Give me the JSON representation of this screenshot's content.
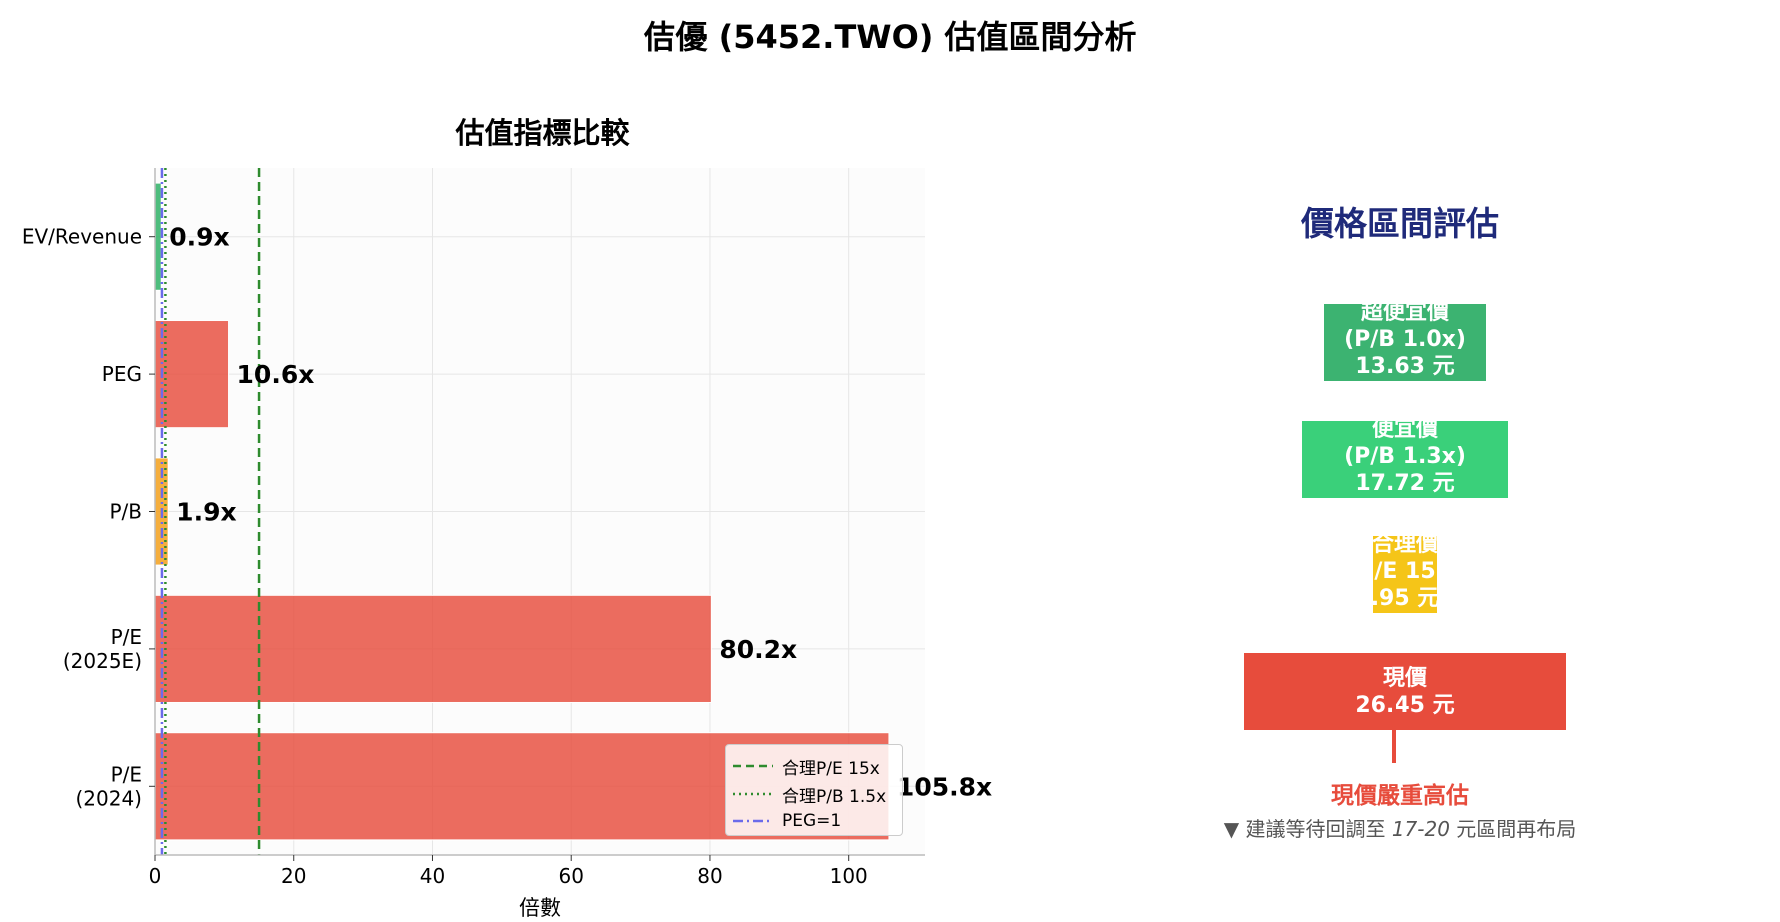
{
  "suptitle": "佶優 (5452.TWO) 估值區間分析",
  "left_panel": {
    "title": "估值指標比較",
    "xlabel": "倍數"
  },
  "chart_data": {
    "type": "bar",
    "orientation": "horizontal",
    "title": "估值指標比較",
    "xlabel": "倍數",
    "ylabel": "",
    "xlim": [
      0,
      111
    ],
    "xticks": [
      0,
      20,
      40,
      60,
      80,
      100
    ],
    "grid": true,
    "categories": [
      "EV/Revenue",
      "PEG",
      "P/B",
      "P/E\n(2025E)",
      "P/E\n(2024)"
    ],
    "values": [
      0.9,
      10.6,
      1.9,
      80.2,
      105.8
    ],
    "value_labels": [
      "0.9x",
      "10.6x",
      "1.9x",
      "80.2x",
      "105.8x"
    ],
    "bar_colors": [
      "#27ae60",
      "#e74c3c",
      "#f39c12",
      "#e74c3c",
      "#e74c3c"
    ],
    "reference_lines": [
      {
        "label": "合理P/E 15x",
        "value": 15,
        "style": "dashed",
        "color": "#2e8b2e"
      },
      {
        "label": "合理P/B 1.5x",
        "value": 1.5,
        "style": "dotted",
        "color": "#2e8b2e"
      },
      {
        "label": "PEG=1",
        "value": 1,
        "style": "dashdot",
        "color": "#6b6bea"
      }
    ],
    "legend_position": "lower right"
  },
  "right_panel": {
    "title": "價格區間評估",
    "tiers": [
      {
        "lines": [
          "超便宜價",
          "(P/B 1.0x)",
          "13.63 元"
        ],
        "color": "#3cb371"
      },
      {
        "lines": [
          "便宜價",
          "(P/B 1.3x)",
          "17.72 元"
        ],
        "color": "#3ad07a"
      },
      {
        "lines": [
          "合理價",
          "/E 15",
          ".95 元"
        ],
        "color": "#f5c518"
      },
      {
        "lines": [
          "現價",
          "26.45 元"
        ],
        "color": "#e74c3c"
      }
    ],
    "verdict": "現價嚴重高估",
    "advice_prefix": "▼ 建議等待回調至 ",
    "advice_range": "17-20",
    "advice_suffix": " 元區間再布局"
  }
}
